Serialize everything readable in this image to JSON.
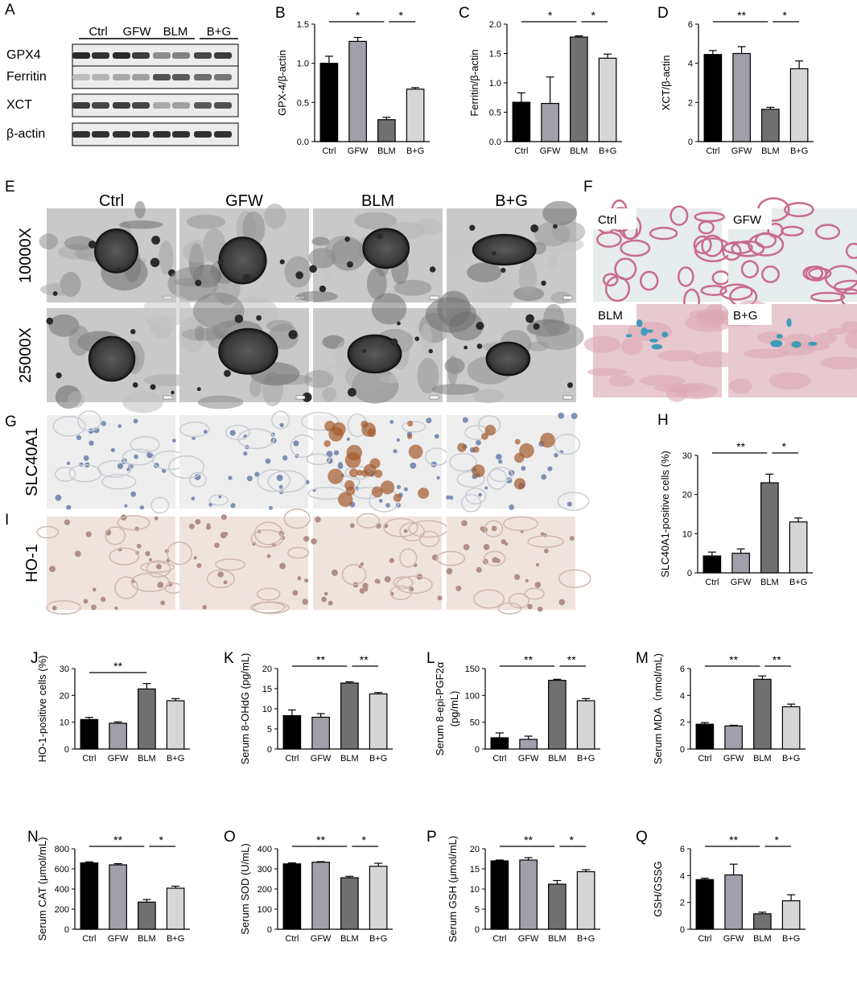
{
  "panel_letters": [
    "A",
    "B",
    "C",
    "D",
    "E",
    "F",
    "G",
    "H",
    "I",
    "J",
    "K",
    "L",
    "M",
    "N",
    "O",
    "P",
    "Q"
  ],
  "colors": {
    "Ctrl": "#000000",
    "GFW": "#a0a0aa",
    "BLM": "#707070",
    "B+G": "#d6d6d6"
  },
  "western_blot": {
    "groups": [
      "Ctrl",
      "GFW",
      "BLM",
      "B+G"
    ],
    "bands": [
      {
        "label": "GPX4",
        "intensities": [
          0.95,
          0.9,
          0.95,
          0.85,
          0.45,
          0.5,
          0.8,
          0.85
        ]
      },
      {
        "label": "Ferritin",
        "intensities": [
          0.2,
          0.25,
          0.3,
          0.35,
          0.75,
          0.7,
          0.6,
          0.55
        ]
      },
      {
        "label": "XCT",
        "intensities": [
          0.85,
          0.8,
          0.85,
          0.8,
          0.3,
          0.35,
          0.7,
          0.75
        ]
      },
      {
        "label": "β-actin",
        "intensities": [
          0.9,
          0.9,
          0.9,
          0.9,
          0.9,
          0.9,
          0.9,
          0.9
        ]
      }
    ]
  },
  "tem": {
    "columns": [
      "Ctrl",
      "GFW",
      "BLM",
      "B+G"
    ],
    "rows": [
      "10000X",
      "25000X"
    ]
  },
  "iron_stain": {
    "labels": [
      "Ctrl",
      "GFW",
      "BLM",
      "B+G"
    ]
  },
  "ihc": {
    "rows": [
      "SLC40A1",
      "HO-1"
    ]
  },
  "chart_data": [
    {
      "panel": "B",
      "type": "bar",
      "categories": [
        "Ctrl",
        "GFW",
        "BLM",
        "B+G"
      ],
      "values": [
        1.0,
        1.28,
        0.28,
        0.67
      ],
      "errors": [
        0.09,
        0.05,
        0.03,
        0.02
      ],
      "ylabel": "GPX-4/β-actin",
      "ylim": [
        0,
        1.5
      ],
      "yticks": [
        0.0,
        0.5,
        1.0,
        1.5
      ],
      "tick_labels": [
        "0.0",
        "0.5",
        "1.0",
        "1.5"
      ],
      "sig": [
        {
          "from": 0,
          "to": 2,
          "label": "*"
        },
        {
          "from": 2,
          "to": 3,
          "label": "*"
        }
      ]
    },
    {
      "panel": "C",
      "type": "bar",
      "categories": [
        "Ctrl",
        "GFW",
        "BLM",
        "B+G"
      ],
      "values": [
        0.67,
        0.65,
        1.78,
        1.42
      ],
      "errors": [
        0.16,
        0.45,
        0.02,
        0.07
      ],
      "ylabel": "Ferritin/β-actin",
      "ylim": [
        0,
        2.0
      ],
      "yticks": [
        0.0,
        0.5,
        1.0,
        1.5,
        2.0
      ],
      "tick_labels": [
        "0.0",
        "0.5",
        "1.0",
        "1.5",
        "2.0"
      ],
      "sig": [
        {
          "from": 0,
          "to": 2,
          "label": "*"
        },
        {
          "from": 2,
          "to": 3,
          "label": "*"
        }
      ]
    },
    {
      "panel": "D",
      "type": "bar",
      "categories": [
        "Ctrl",
        "GFW",
        "BLM",
        "B+G"
      ],
      "values": [
        4.45,
        4.5,
        1.65,
        3.72
      ],
      "errors": [
        0.2,
        0.35,
        0.1,
        0.4
      ],
      "ylabel": "XCT/β-actin",
      "ylim": [
        0,
        6
      ],
      "yticks": [
        0,
        2,
        4,
        6
      ],
      "tick_labels": [
        "0",
        "2",
        "4",
        "6"
      ],
      "sig": [
        {
          "from": 0,
          "to": 2,
          "label": "**"
        },
        {
          "from": 2,
          "to": 3,
          "label": "*"
        }
      ]
    },
    {
      "panel": "H",
      "type": "bar",
      "categories": [
        "Ctrl",
        "GFW",
        "BLM",
        "B+G"
      ],
      "values": [
        4.3,
        5.0,
        23.0,
        13.0
      ],
      "errors": [
        1.0,
        1.1,
        2.2,
        1.0
      ],
      "ylabel": "SLC40A1-positive cells (%)",
      "ylim": [
        0,
        30
      ],
      "yticks": [
        0,
        10,
        20,
        30
      ],
      "tick_labels": [
        "0",
        "10",
        "20",
        "30"
      ],
      "sig": [
        {
          "from": 0,
          "to": 2,
          "label": "**"
        },
        {
          "from": 2,
          "to": 3,
          "label": "*"
        }
      ]
    },
    {
      "panel": "J",
      "type": "bar",
      "categories": [
        "Ctrl",
        "GFW",
        "BLM",
        "B+G"
      ],
      "values": [
        11.0,
        9.6,
        22.4,
        18.0
      ],
      "errors": [
        0.8,
        0.5,
        2.0,
        0.8
      ],
      "ylabel": "HO-1-positive cells (%)",
      "ylim": [
        0,
        30
      ],
      "yticks": [
        0,
        10,
        20,
        30
      ],
      "tick_labels": [
        "0",
        "10",
        "20",
        "30"
      ],
      "sig": [
        {
          "from": 0,
          "to": 2,
          "label": "**"
        }
      ]
    },
    {
      "panel": "K",
      "type": "bar",
      "categories": [
        "Ctrl",
        "GFW",
        "BLM",
        "B+G"
      ],
      "values": [
        8.3,
        7.9,
        16.4,
        13.7
      ],
      "errors": [
        1.4,
        0.9,
        0.3,
        0.35
      ],
      "ylabel": "Serum 8-OHdG (pg/mL)",
      "ylim": [
        0,
        20
      ],
      "yticks": [
        0,
        5,
        10,
        15,
        20
      ],
      "tick_labels": [
        "0",
        "5",
        "10",
        "15",
        "20"
      ],
      "sig": [
        {
          "from": 0,
          "to": 2,
          "label": "**"
        },
        {
          "from": 2,
          "to": 3,
          "label": "**"
        }
      ]
    },
    {
      "panel": "L",
      "type": "bar",
      "categories": [
        "Ctrl",
        "GFW",
        "BLM",
        "B+G"
      ],
      "values": [
        21,
        18,
        128,
        90
      ],
      "errors": [
        9,
        6,
        2,
        4
      ],
      "ylabel_lines": [
        "Serum 8-epi-PGF2α",
        "(pg/mL)"
      ],
      "ylim": [
        0,
        150
      ],
      "yticks": [
        0,
        50,
        100,
        150
      ],
      "tick_labels": [
        "0",
        "50",
        "100",
        "150"
      ],
      "sig": [
        {
          "from": 0,
          "to": 2,
          "label": "**"
        },
        {
          "from": 2,
          "to": 3,
          "label": "**"
        }
      ]
    },
    {
      "panel": "M",
      "type": "bar",
      "categories": [
        "Ctrl",
        "GFW",
        "BLM",
        "B+G"
      ],
      "values": [
        1.85,
        1.72,
        5.2,
        3.15
      ],
      "errors": [
        0.12,
        0.05,
        0.25,
        0.2
      ],
      "ylabel": "Serum MDA（nmol/mL)",
      "ylim": [
        0,
        6
      ],
      "yticks": [
        0,
        2,
        4,
        6
      ],
      "tick_labels": [
        "0",
        "2",
        "4",
        "6"
      ],
      "sig": [
        {
          "from": 0,
          "to": 2,
          "label": "**"
        },
        {
          "from": 2,
          "to": 3,
          "label": "**"
        }
      ]
    },
    {
      "panel": "N",
      "type": "bar",
      "categories": [
        "Ctrl",
        "GFW",
        "BLM",
        "B+G"
      ],
      "values": [
        660,
        640,
        270,
        408
      ],
      "errors": [
        10,
        12,
        25,
        20
      ],
      "ylabel": "Serum CAT (μmol/mL)",
      "ylim": [
        0,
        800
      ],
      "yticks": [
        0,
        200,
        400,
        600,
        800
      ],
      "tick_labels": [
        "0",
        "200",
        "400",
        "600",
        "800"
      ],
      "sig": [
        {
          "from": 0,
          "to": 2,
          "label": "**"
        },
        {
          "from": 2,
          "to": 3,
          "label": "*"
        }
      ]
    },
    {
      "panel": "O",
      "type": "bar",
      "categories": [
        "Ctrl",
        "GFW",
        "BLM",
        "B+G"
      ],
      "values": [
        325,
        333,
        256,
        313
      ],
      "errors": [
        5,
        3,
        7,
        15
      ],
      "ylabel": "Serum SOD (U/mL)",
      "ylim": [
        0,
        400
      ],
      "yticks": [
        0,
        100,
        200,
        300,
        400
      ],
      "tick_labels": [
        "0",
        "100",
        "200",
        "300",
        "400"
      ],
      "sig": [
        {
          "from": 0,
          "to": 2,
          "label": "**"
        },
        {
          "from": 2,
          "to": 3,
          "label": "*"
        }
      ]
    },
    {
      "panel": "P",
      "type": "bar",
      "categories": [
        "Ctrl",
        "GFW",
        "BLM",
        "B+G"
      ],
      "values": [
        17.0,
        17.2,
        11.2,
        14.3
      ],
      "errors": [
        0.2,
        0.6,
        0.9,
        0.5
      ],
      "ylabel": "Serum GSH (μmol/mL)",
      "ylim": [
        0,
        20
      ],
      "yticks": [
        0,
        5,
        10,
        15,
        20
      ],
      "tick_labels": [
        "0",
        "5",
        "10",
        "15",
        "20"
      ],
      "sig": [
        {
          "from": 0,
          "to": 2,
          "label": "**"
        },
        {
          "from": 2,
          "to": 3,
          "label": "*"
        }
      ]
    },
    {
      "panel": "Q",
      "type": "bar",
      "categories": [
        "Ctrl",
        "GFW",
        "BLM",
        "B+G"
      ],
      "values": [
        3.7,
        4.05,
        1.15,
        2.12
      ],
      "errors": [
        0.1,
        0.8,
        0.12,
        0.45
      ],
      "ylabel": "GSH/GSSG",
      "ylim": [
        0,
        6
      ],
      "yticks": [
        0,
        2,
        4,
        6
      ],
      "tick_labels": [
        "0",
        "2",
        "4",
        "6"
      ],
      "sig": [
        {
          "from": 0,
          "to": 2,
          "label": "**"
        },
        {
          "from": 2,
          "to": 3,
          "label": "*"
        }
      ]
    }
  ]
}
